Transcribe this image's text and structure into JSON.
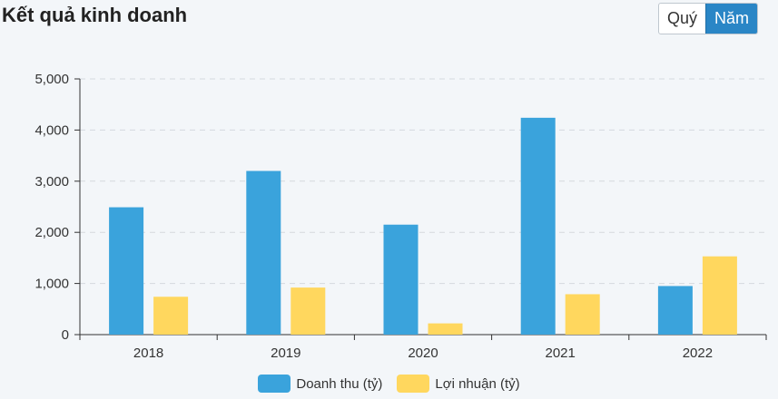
{
  "header": {
    "title": "Kết quả kinh doanh"
  },
  "period_toggle": {
    "options": [
      "Quý",
      "Năm"
    ],
    "selected": "Năm"
  },
  "colors": {
    "revenue": "#3aa3dc",
    "profit": "#ffd75e",
    "axis": "#333333",
    "grid": "#d5d9de"
  },
  "chart_data": {
    "type": "bar",
    "title": "Kết quả kinh doanh",
    "categories": [
      "2018",
      "2019",
      "2020",
      "2021",
      "2022"
    ],
    "series": [
      {
        "name": "Doanh thu (tỷ)",
        "values": [
          2490,
          3200,
          2150,
          4240,
          950
        ]
      },
      {
        "name": "Lợi nhuận (tỷ)",
        "values": [
          740,
          920,
          220,
          790,
          1530
        ]
      }
    ],
    "ylim": [
      0,
      5000
    ],
    "yticks": [
      0,
      1000,
      2000,
      3000,
      4000,
      5000
    ],
    "ytick_labels": [
      "0",
      "1,000",
      "2,000",
      "3,000",
      "4,000",
      "5,000"
    ],
    "xlabel": "",
    "ylabel": "",
    "grid": true,
    "legend_position": "bottom-center"
  }
}
